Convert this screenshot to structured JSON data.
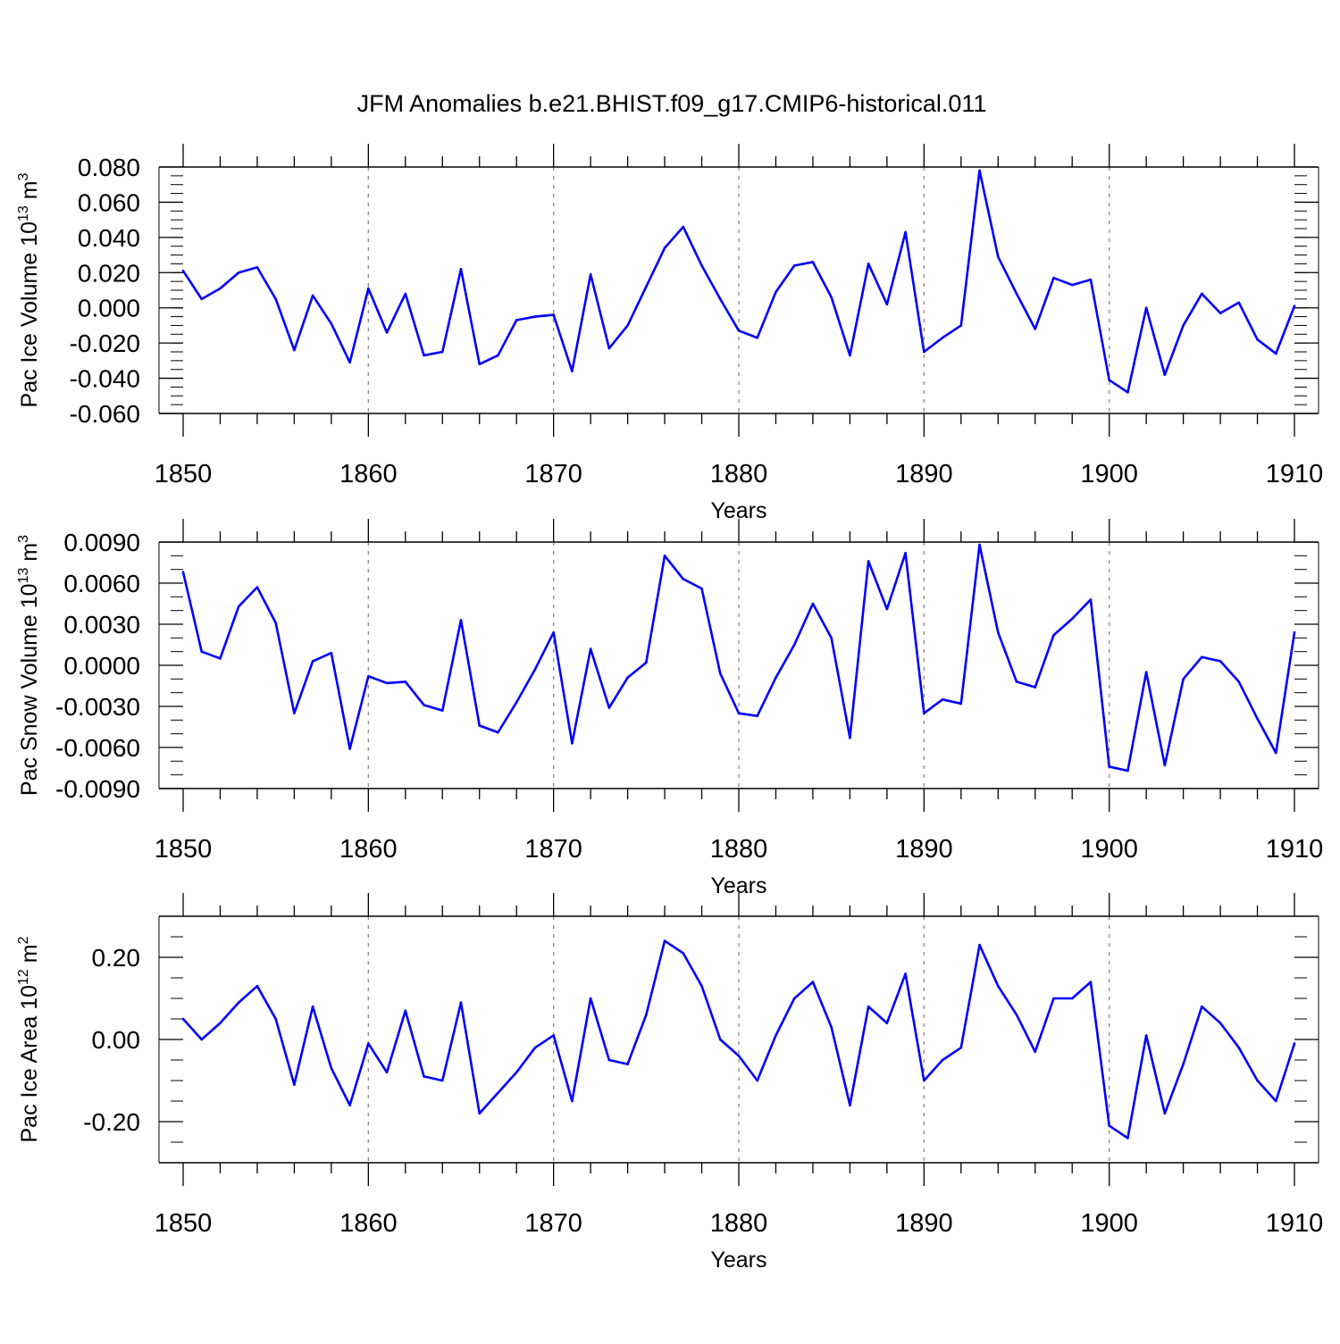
{
  "title": "JFM Anomalies b.e21.BHIST.f09_g17.CMIP6-historical.011",
  "colors": {
    "line": "#0000ff",
    "axis": "#000000",
    "grid": "#888888",
    "background": "#ffffff"
  },
  "chart_data": [
    {
      "type": "line",
      "id": "ice-volume",
      "ylabel": {
        "text": "Pac Ice Volume 10",
        "sup": "13",
        "unit": " m",
        "unit_sup": "3"
      },
      "xlabel": "Years",
      "xlim": [
        1850,
        1910
      ],
      "ylim": [
        -0.06,
        0.08
      ],
      "yticks": [
        0.08,
        0.06,
        0.04,
        0.02,
        0.0,
        -0.02,
        -0.04,
        -0.06
      ],
      "ytick_labels": [
        "0.080",
        "0.060",
        "0.040",
        "0.020",
        "0.000",
        "-0.020",
        "-0.040",
        "-0.060"
      ],
      "yminor_step": 0.005,
      "xticks": [
        1850,
        1860,
        1870,
        1880,
        1890,
        1900,
        1910
      ],
      "xtick_labels": [
        "1850",
        "1860",
        "1870",
        "1880",
        "1890",
        "1900",
        "1910"
      ],
      "vgrid": [
        1860,
        1870,
        1880,
        1890,
        1900
      ],
      "series": [
        {
          "name": "Pac Ice Volume",
          "x_start": 1850,
          "values": [
            0.021,
            0.005,
            0.011,
            0.02,
            0.023,
            0.005,
            -0.024,
            0.007,
            -0.009,
            -0.031,
            0.011,
            -0.014,
            0.008,
            -0.027,
            -0.025,
            0.022,
            -0.032,
            -0.027,
            -0.007,
            -0.005,
            -0.004,
            -0.036,
            0.019,
            -0.023,
            -0.01,
            0.012,
            0.034,
            0.046,
            0.024,
            0.005,
            -0.013,
            -0.017,
            0.009,
            0.024,
            0.026,
            0.006,
            -0.027,
            0.025,
            0.002,
            0.043,
            -0.025,
            -0.017,
            -0.01,
            0.078,
            0.029,
            0.008,
            -0.012,
            0.017,
            0.013,
            0.016,
            -0.041,
            -0.048,
            0.0,
            -0.038,
            -0.01,
            0.008,
            -0.003,
            0.003,
            -0.018,
            -0.026,
            0.001
          ]
        }
      ]
    },
    {
      "type": "line",
      "id": "snow-volume",
      "ylabel": {
        "text": "Pac Snow Volume 10",
        "sup": "13",
        "unit": " m",
        "unit_sup": "3"
      },
      "xlabel": "Years",
      "xlim": [
        1850,
        1910
      ],
      "ylim": [
        -0.009,
        0.009
      ],
      "yticks": [
        0.009,
        0.006,
        0.003,
        0.0,
        -0.003,
        -0.006,
        -0.009
      ],
      "ytick_labels": [
        "0.0090",
        "0.0060",
        "0.0030",
        "0.0000",
        "-0.0030",
        "-0.0060",
        "-0.0090"
      ],
      "yminor_step": 0.001,
      "xticks": [
        1850,
        1860,
        1870,
        1880,
        1890,
        1900,
        1910
      ],
      "xtick_labels": [
        "1850",
        "1860",
        "1870",
        "1880",
        "1890",
        "1900",
        "1910"
      ],
      "vgrid": [
        1860,
        1870,
        1880,
        1890,
        1900
      ],
      "series": [
        {
          "name": "Pac Snow Volume",
          "x_start": 1850,
          "values": [
            0.0068,
            0.001,
            0.0005,
            0.0043,
            0.0057,
            0.0031,
            -0.0035,
            0.0003,
            0.0009,
            -0.0061,
            -0.0008,
            -0.0013,
            -0.0012,
            -0.0029,
            -0.0033,
            0.0033,
            -0.0044,
            -0.0049,
            -0.0027,
            -0.0003,
            0.0024,
            -0.0057,
            0.0012,
            -0.0031,
            -0.0009,
            0.0002,
            0.008,
            0.0063,
            0.0056,
            -0.0006,
            -0.0035,
            -0.0037,
            -0.0009,
            0.0015,
            0.0045,
            0.002,
            -0.0053,
            0.0076,
            0.0041,
            0.0082,
            -0.0035,
            -0.0025,
            -0.0028,
            0.0088,
            0.0024,
            -0.0012,
            -0.0016,
            0.0022,
            0.0034,
            0.0048,
            -0.0074,
            -0.0077,
            -0.0005,
            -0.0073,
            -0.001,
            0.0006,
            0.0003,
            -0.0012,
            -0.0039,
            -0.0064,
            0.0024
          ]
        }
      ]
    },
    {
      "type": "line",
      "id": "ice-area",
      "ylabel": {
        "text": "Pac Ice Area 10",
        "sup": "12",
        "unit": " m",
        "unit_sup": "2"
      },
      "xlabel": "Years",
      "xlim": [
        1850,
        1910
      ],
      "ylim": [
        -0.3,
        0.3
      ],
      "yticks": [
        0.2,
        0.0,
        -0.2
      ],
      "ytick_labels": [
        "0.20",
        "0.00",
        "-0.20"
      ],
      "yminor_step": 0.05,
      "xticks": [
        1850,
        1860,
        1870,
        1880,
        1890,
        1900,
        1910
      ],
      "xtick_labels": [
        "1850",
        "1860",
        "1870",
        "1880",
        "1890",
        "1900",
        "1910"
      ],
      "vgrid": [
        1860,
        1870,
        1880,
        1890,
        1900
      ],
      "series": [
        {
          "name": "Pac Ice Area",
          "x_start": 1850,
          "values": [
            0.05,
            0.0,
            0.04,
            0.09,
            0.13,
            0.05,
            -0.11,
            0.08,
            -0.07,
            -0.16,
            -0.01,
            -0.08,
            0.07,
            -0.09,
            -0.1,
            0.09,
            -0.18,
            -0.13,
            -0.08,
            -0.02,
            0.01,
            -0.15,
            0.1,
            -0.05,
            -0.06,
            0.06,
            0.24,
            0.21,
            0.13,
            0.0,
            -0.04,
            -0.1,
            0.01,
            0.1,
            0.14,
            0.03,
            -0.16,
            0.08,
            0.04,
            0.16,
            -0.1,
            -0.05,
            -0.02,
            0.23,
            0.13,
            0.06,
            -0.03,
            0.1,
            0.1,
            0.14,
            -0.21,
            -0.24,
            0.01,
            -0.18,
            -0.06,
            0.08,
            0.04,
            -0.02,
            -0.1,
            -0.15,
            -0.01
          ]
        }
      ]
    }
  ]
}
